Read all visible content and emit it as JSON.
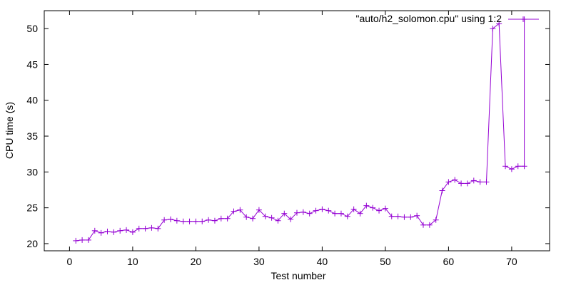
{
  "chart_data": {
    "type": "line",
    "xlabel": "Test number",
    "ylabel": "CPU time (s)",
    "xlim": [
      -4,
      76
    ],
    "ylim": [
      19,
      52.5
    ],
    "x_ticks": [
      0,
      10,
      20,
      30,
      40,
      50,
      60,
      70
    ],
    "y_ticks": [
      20,
      25,
      30,
      35,
      40,
      45,
      50
    ],
    "legend_position": "top-right",
    "grid": false,
    "series": [
      {
        "name": "\"auto/h2_solomon.cpu\" using 1:2",
        "color": "#9400d3",
        "marker": "plus",
        "x": [
          1,
          2,
          3,
          4,
          5,
          6,
          7,
          8,
          9,
          10,
          11,
          12,
          13,
          14,
          15,
          16,
          17,
          18,
          19,
          20,
          21,
          22,
          23,
          24,
          25,
          26,
          27,
          28,
          29,
          30,
          31,
          32,
          33,
          34,
          35,
          36,
          37,
          38,
          39,
          40,
          41,
          42,
          43,
          44,
          45,
          46,
          47,
          48,
          49,
          50,
          51,
          52,
          53,
          54,
          55,
          56,
          57,
          58,
          59,
          60,
          61,
          62,
          63,
          64,
          65,
          66,
          67,
          68,
          69,
          70,
          71,
          72
        ],
        "y": [
          20.4,
          20.5,
          20.5,
          21.8,
          21.5,
          21.7,
          21.6,
          21.8,
          21.9,
          21.6,
          22.1,
          22.1,
          22.2,
          22.1,
          23.3,
          23.4,
          23.2,
          23.1,
          23.1,
          23.1,
          23.1,
          23.3,
          23.2,
          23.5,
          23.5,
          24.5,
          24.7,
          23.7,
          23.5,
          24.7,
          23.8,
          23.6,
          23.2,
          24.2,
          23.4,
          24.3,
          24.4,
          24.2,
          24.6,
          24.8,
          24.6,
          24.2,
          24.2,
          23.8,
          24.8,
          24.2,
          25.3,
          25.0,
          24.6,
          24.9,
          23.8,
          23.8,
          23.7,
          23.7,
          23.9,
          22.6,
          22.6,
          23.3,
          27.4,
          28.6,
          28.9,
          28.4,
          28.4,
          28.8,
          28.6,
          28.6,
          50.0,
          50.7,
          30.8,
          30.4,
          30.8,
          30.8
        ]
      },
      {
        "x": [
          72,
          72
        ],
        "y": [
          30.8,
          51.3
        ]
      }
    ]
  }
}
